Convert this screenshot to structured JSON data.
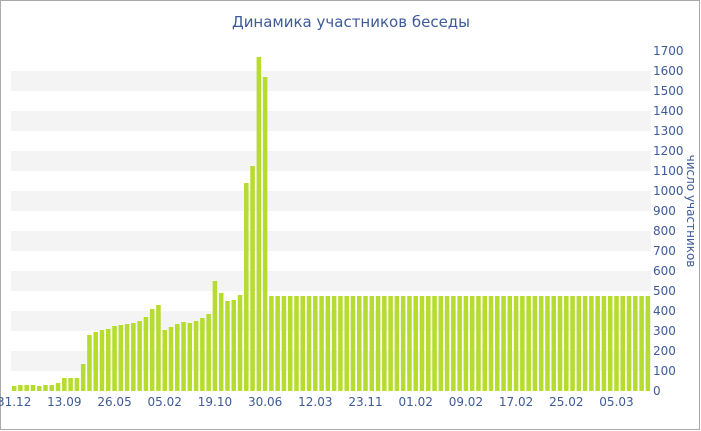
{
  "chart_data": {
    "type": "bar",
    "title": "Динамика участников беседы",
    "xlabel": "",
    "ylabel": "число участников",
    "ylim": [
      0,
      1700
    ],
    "y_ticks": [
      0,
      100,
      200,
      300,
      400,
      500,
      600,
      700,
      800,
      900,
      1000,
      1100,
      1200,
      1300,
      1400,
      1500,
      1600,
      1700
    ],
    "x_tick_labels": [
      "31.12",
      "13.09",
      "26.05",
      "05.02",
      "19.10",
      "30.06",
      "12.03",
      "23.11",
      "01.02",
      "09.02",
      "17.02",
      "25.02",
      "05.03"
    ],
    "x_tick_indices": [
      0,
      8,
      16,
      24,
      32,
      40,
      48,
      56,
      64,
      72,
      80,
      88,
      96
    ],
    "grid": "horizontal-bands",
    "legend": "none",
    "colors": {
      "bar": "#b5dc2e",
      "band": "#f4f4f4",
      "text": "#3d5a99"
    },
    "values": [
      25,
      30,
      30,
      30,
      25,
      30,
      30,
      40,
      65,
      65,
      65,
      135,
      280,
      295,
      305,
      310,
      325,
      330,
      335,
      340,
      350,
      370,
      410,
      430,
      305,
      320,
      335,
      345,
      340,
      350,
      365,
      385,
      550,
      490,
      450,
      455,
      480,
      1040,
      1125,
      1670,
      1570,
      475,
      475,
      475,
      475,
      475,
      475,
      475,
      475,
      475,
      475,
      475,
      475,
      475,
      475,
      475,
      475,
      475,
      475,
      475,
      475,
      475,
      475,
      475,
      475,
      475,
      475,
      475,
      475,
      475,
      475,
      475,
      475,
      475,
      475,
      475,
      475,
      475,
      475,
      475,
      475,
      475,
      475,
      475,
      475,
      475,
      475,
      475,
      475,
      475,
      475,
      475,
      475,
      475,
      475,
      475,
      475,
      475,
      475,
      475,
      475,
      475
    ]
  }
}
